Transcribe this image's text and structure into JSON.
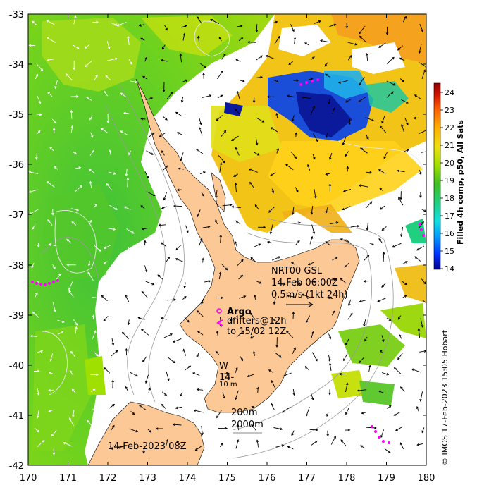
{
  "map": {
    "lon_ticks": [
      "170",
      "171",
      "172",
      "173",
      "174",
      "175",
      "176",
      "177",
      "178",
      "179",
      "180"
    ],
    "lat_ticks": [
      "-33",
      "-34",
      "-35",
      "-36",
      "-37",
      "-38",
      "-39",
      "-40",
      "-41",
      "-42"
    ],
    "lon_range": [
      170,
      180
    ],
    "lat_range": [
      -42,
      -33
    ],
    "colors": {
      "land": "#fcc896",
      "no_data": "#ffffff",
      "drifter_markers": "#ff00ff",
      "argo_marker": "#ff00ff"
    }
  },
  "colorbar": {
    "label": "Filled 4h comp, p50, All Sats",
    "ticks": [
      "14",
      "15",
      "16",
      "17",
      "18",
      "19",
      "20",
      "21",
      "22",
      "23",
      "24"
    ],
    "range": [
      14,
      24.5
    ],
    "colormap": [
      "#00008c",
      "#0030ff",
      "#00a0ff",
      "#10e0e0",
      "#20d080",
      "#40c020",
      "#a0e000",
      "#f0e010",
      "#ffb000",
      "#ff6000",
      "#d01000",
      "#900000"
    ]
  },
  "annotations": {
    "current_product": "NRT00 GSL",
    "current_time": "14-Feb 06:00Z",
    "current_scale": "0.5m/s (1kt 24h)",
    "argo_label": "Argo",
    "drifters_line1": "drifters@12h",
    "drifters_line2": "to 15/02 12Z",
    "wind_label": "W",
    "wind_time": "14-",
    "wind_scale": "10 m",
    "contour_200": "200m",
    "contour_2000": "2000m",
    "image_time": "14-Feb-2023 08Z",
    "credit": "© IMOS 17-Feb-2023 15:05 Hobart"
  }
}
